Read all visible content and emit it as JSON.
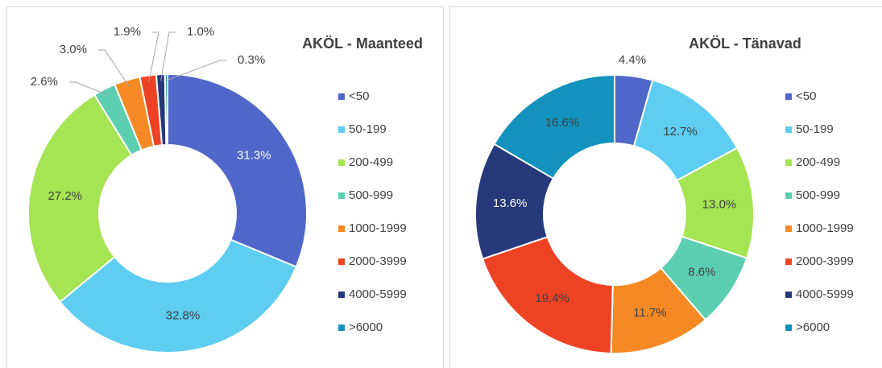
{
  "chart_data": [
    {
      "type": "donut",
      "title": "AKÖL - Maanteed",
      "categories": [
        "<50",
        "50-199",
        "200-499",
        "500-999",
        "1000-1999",
        "2000-3999",
        "4000-5999",
        ">6000"
      ],
      "values": [
        31.3,
        32.8,
        27.2,
        2.6,
        3.0,
        1.9,
        1.0,
        0.3
      ],
      "value_labels": [
        "31.3%",
        "32.8%",
        "27.2%",
        "2.6%",
        "3.0%",
        "1.9%",
        "1.0%",
        "0.3%"
      ],
      "colors": [
        "#4f67c8",
        "#5dcdf2",
        "#a5e452",
        "#5ccfb0",
        "#f58a24",
        "#ee4224",
        "#27397a",
        "#1392bd"
      ]
    },
    {
      "type": "donut",
      "title": "AKÖL - Tänavad",
      "categories": [
        "<50",
        "50-199",
        "200-499",
        "500-999",
        "1000-1999",
        "2000-3999",
        "4000-5999",
        ">6000"
      ],
      "values": [
        4.4,
        12.7,
        13.0,
        8.6,
        11.7,
        19.4,
        13.6,
        16.6
      ],
      "value_labels": [
        "4.4%",
        "12.7%",
        "13.0%",
        "8.6%",
        "11.7%",
        "19.4%",
        "13.6%",
        "16.6%"
      ],
      "colors": [
        "#4f67c8",
        "#5dcdf2",
        "#a5e452",
        "#5ccfb0",
        "#f58a24",
        "#ee4224",
        "#27397a",
        "#1392bd"
      ]
    }
  ]
}
